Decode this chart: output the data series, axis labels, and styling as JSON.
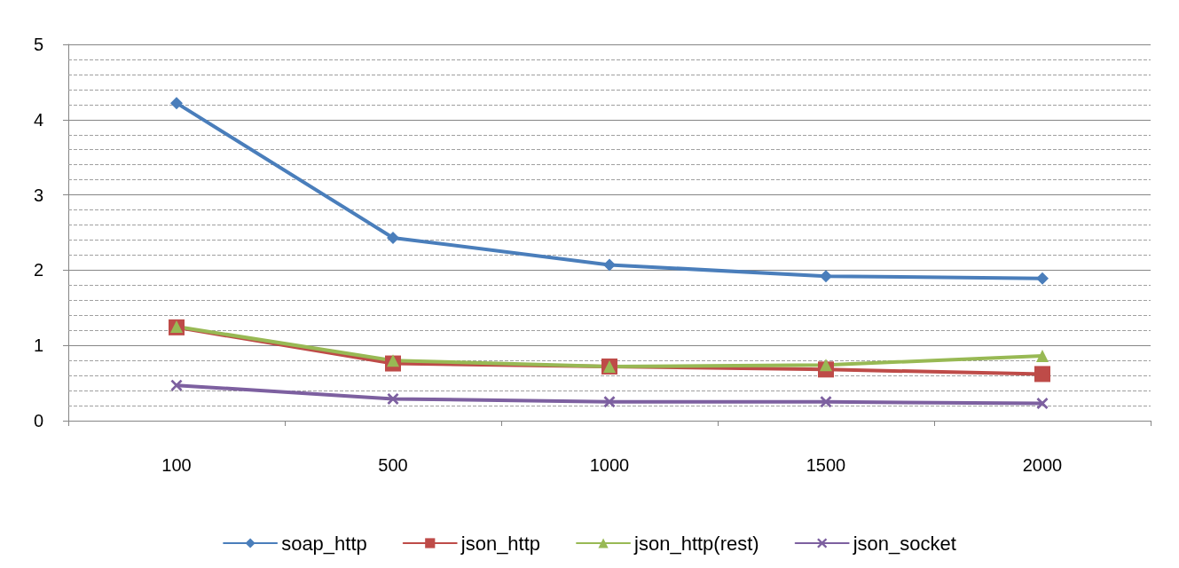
{
  "chart_data": {
    "type": "line",
    "categories": [
      "100",
      "500",
      "1000",
      "1500",
      "2000"
    ],
    "series": [
      {
        "name": "soap_http",
        "color": "#4a7ebb",
        "marker": "diamond",
        "values": [
          4.22,
          2.43,
          2.07,
          1.92,
          1.89
        ]
      },
      {
        "name": "json_http",
        "color": "#be4b48",
        "marker": "square",
        "values": [
          1.24,
          0.76,
          0.72,
          0.68,
          0.62
        ]
      },
      {
        "name": "json_http(rest)",
        "color": "#98b954",
        "marker": "triangle",
        "values": [
          1.25,
          0.8,
          0.72,
          0.74,
          0.86
        ]
      },
      {
        "name": "json_socket",
        "color": "#7d60a0",
        "marker": "cross",
        "values": [
          0.47,
          0.29,
          0.25,
          0.25,
          0.23
        ]
      }
    ],
    "ylim": [
      0,
      5
    ],
    "yticks": [
      0,
      {
        "value": 0.2,
        "label": null
      },
      {
        "value": 0.4,
        "label": null
      },
      {
        "value": 0.6,
        "label": null
      },
      {
        "value": 0.8,
        "label": null
      },
      1,
      {
        "value": 1.2,
        "label": null
      },
      {
        "value": 1.4,
        "label": null
      },
      {
        "value": 1.6,
        "label": null
      },
      {
        "value": 1.8,
        "label": null
      },
      2,
      {
        "value": 2.2,
        "label": null
      },
      {
        "value": 2.4,
        "label": null
      },
      {
        "value": 2.6,
        "label": null
      },
      {
        "value": 2.8,
        "label": null
      },
      3,
      {
        "value": 3.2,
        "label": null
      },
      {
        "value": 3.4,
        "label": null
      },
      {
        "value": 3.6,
        "label": null
      },
      {
        "value": 3.8,
        "label": null
      },
      4,
      {
        "value": 4.2,
        "label": null
      },
      {
        "value": 4.4,
        "label": null
      },
      {
        "value": 4.6,
        "label": null
      },
      {
        "value": 4.8,
        "label": null
      },
      5
    ],
    "grid": "y",
    "legend": "bottom",
    "line_style": "solid"
  }
}
